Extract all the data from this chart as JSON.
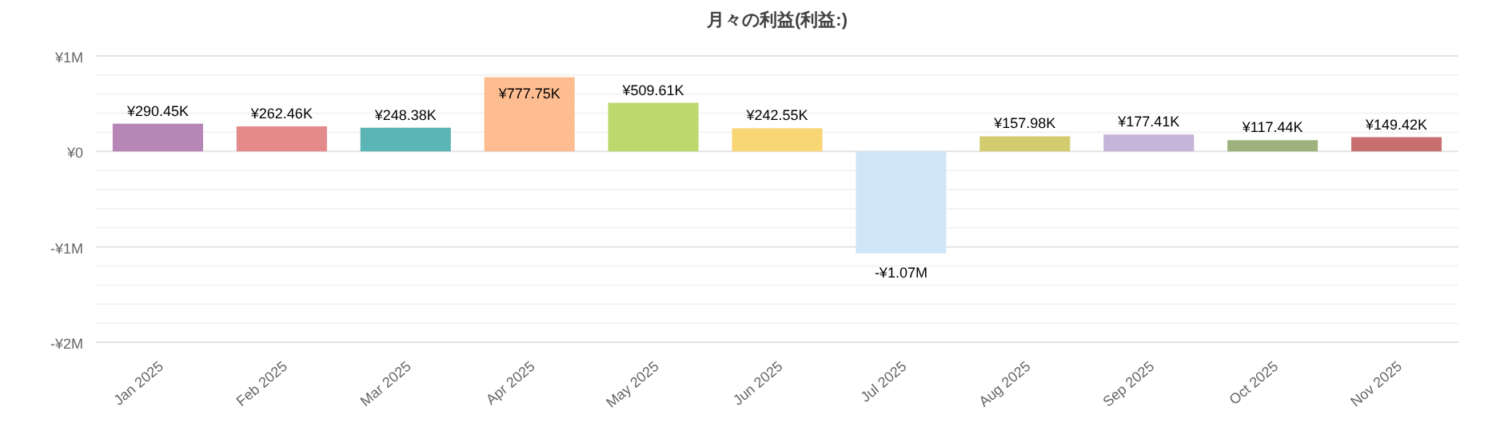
{
  "chart_data": {
    "type": "bar",
    "title": "月々の利益(利益:)",
    "categories": [
      "Jan 2025",
      "Feb 2025",
      "Mar 2025",
      "Apr 2025",
      "May 2025",
      "Jun 2025",
      "Jul 2025",
      "Aug 2025",
      "Sep 2025",
      "Oct 2025",
      "Nov 2025"
    ],
    "values": [
      290450,
      262460,
      248380,
      777750,
      509610,
      242550,
      -1070000,
      157980,
      177410,
      117440,
      149420
    ],
    "value_labels": [
      "¥290.45K",
      "¥262.46K",
      "¥248.38K",
      "¥777.75K",
      "¥509.61K",
      "¥242.55K",
      "-¥1.07M",
      "¥157.98K",
      "¥177.41K",
      "¥117.44K",
      "¥149.42K"
    ],
    "colors": [
      "#b686b6",
      "#e58a8a",
      "#5bb5b5",
      "#fdbd91",
      "#bdd86d",
      "#f8d575",
      "#d0e6f7",
      "#d3cc6e",
      "#c6b5d8",
      "#9db27c",
      "#c87070"
    ],
    "ylim": [
      -2000000,
      1000000
    ],
    "yticks": [
      {
        "value": -2000000,
        "label": "-¥2M"
      },
      {
        "value": -1800000,
        "label": null
      },
      {
        "value": -1600000,
        "label": null
      },
      {
        "value": -1400000,
        "label": null
      },
      {
        "value": -1200000,
        "label": null
      },
      {
        "value": -1000000,
        "label": "-¥1M"
      },
      {
        "value": -800000,
        "label": null
      },
      {
        "value": -600000,
        "label": null
      },
      {
        "value": -400000,
        "label": null
      },
      {
        "value": -200000,
        "label": null
      },
      {
        "value": 0,
        "label": "¥0"
      },
      {
        "value": 200000,
        "label": null
      },
      {
        "value": 400000,
        "label": null
      },
      {
        "value": 600000,
        "label": null
      },
      {
        "value": 800000,
        "label": null
      },
      {
        "value": 1000000,
        "label": "¥1M"
      }
    ],
    "grid": true
  }
}
